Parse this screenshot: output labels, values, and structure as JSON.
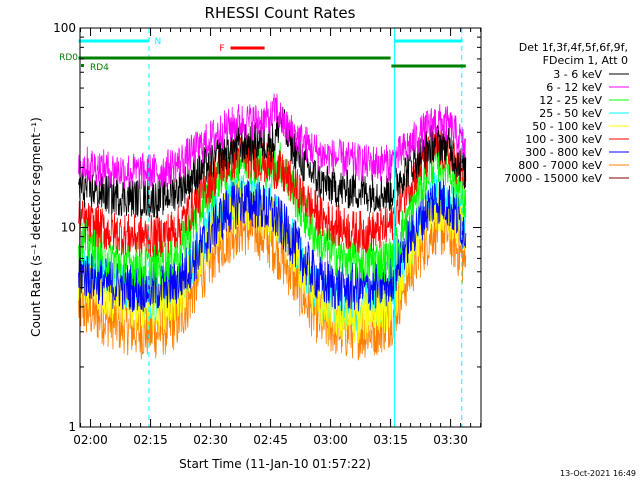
{
  "chart_data": {
    "type": "line",
    "title": "RHESSI Count Rates",
    "xlabel": "Start Time (11-Jan-10 01:57:22)",
    "ylabel": "Count Rate (s⁻¹ detector segment⁻¹)",
    "yscale": "log",
    "xlim": [
      117,
      1897
    ],
    "ylim": [
      1,
      100
    ],
    "x_unit": "minutes after 00:00, 11-Jan-10",
    "x_ticks": [
      {
        "x": 120,
        "label": "02:00"
      },
      {
        "x": 135,
        "label": "02:15"
      },
      {
        "x": 150,
        "label": "02:30"
      },
      {
        "x": 165,
        "label": "02:45"
      },
      {
        "x": 180,
        "label": "03:00"
      },
      {
        "x": 195,
        "label": "03:15"
      },
      {
        "x": 210,
        "label": "03:30"
      }
    ],
    "y_ticks": [
      {
        "y": 1,
        "label": "1"
      },
      {
        "y": 10,
        "label": "10"
      },
      {
        "y": 100,
        "label": "100"
      }
    ],
    "legend_header": [
      "Det 1f,3f,4f,5f,6f,9f,",
      "FDecim 1, Att 0"
    ],
    "legend_placement": "right",
    "series": [
      {
        "name": "3 - 6 keV",
        "color": "#000000",
        "x": [
          117,
          125,
          132,
          137,
          142,
          147,
          152,
          157,
          162,
          166,
          167.5,
          169,
          173,
          178,
          183,
          186,
          188,
          191,
          194,
          195.2,
          196,
          199,
          203,
          206,
          209,
          211.5,
          213.8
        ],
        "values": [
          16,
          14.5,
          14,
          14,
          15.5,
          19,
          23,
          26,
          27,
          27,
          36,
          29,
          21,
          16.5,
          15.5,
          15.5,
          15,
          15,
          15,
          15,
          16.5,
          19.5,
          24,
          27,
          26,
          22,
          19
        ]
      },
      {
        "name": "6 - 12 keV",
        "color": "#ff00ff",
        "x": [
          117,
          125,
          132,
          137,
          142,
          147,
          152,
          157,
          162,
          165,
          166.5,
          168,
          173,
          178,
          183,
          186,
          188,
          191,
          194,
          195.2,
          196,
          199,
          203,
          206,
          209,
          211.5,
          213.8
        ],
        "values": [
          21,
          19.5,
          19,
          19,
          21,
          25,
          30,
          34,
          34,
          35,
          40,
          33,
          27,
          23,
          22,
          21.5,
          21,
          21,
          21,
          21,
          22,
          25,
          30,
          34,
          33,
          29,
          25
        ]
      },
      {
        "name": "12 - 25 keV",
        "color": "#00ff00",
        "x": [
          117,
          125,
          132,
          137,
          142,
          147,
          152,
          157,
          162,
          166,
          167.5,
          169,
          173,
          178,
          183,
          186,
          188,
          191,
          194,
          195.2,
          196,
          199,
          203,
          206,
          209,
          211.5,
          213.8
        ],
        "values": [
          9,
          7,
          6.5,
          6.5,
          7.5,
          12,
          18,
          22,
          21,
          20,
          21,
          18,
          12,
          8,
          7,
          7,
          6.8,
          6.8,
          6.9,
          7,
          7.5,
          11,
          17,
          22,
          21,
          17,
          13
        ]
      },
      {
        "name": "25 - 50 keV",
        "color": "#00ffff",
        "x": [
          117,
          125,
          132,
          137,
          142,
          147,
          152,
          157,
          162,
          166,
          170,
          174,
          178,
          183,
          186,
          188,
          191,
          194,
          195.2,
          196,
          199,
          203,
          206,
          209,
          211.5,
          213.8
        ],
        "values": [
          6.5,
          5.5,
          4.5,
          4.5,
          5,
          8,
          12,
          15,
          14,
          12,
          9,
          6,
          4.5,
          4,
          4,
          4,
          4.2,
          4.5,
          4.8,
          5.2,
          7.5,
          11,
          15,
          14,
          12,
          10
        ]
      },
      {
        "name": "50 - 100 keV",
        "color": "#ffff00",
        "x": [
          117,
          125,
          132,
          137,
          142,
          147,
          152,
          157,
          162,
          166,
          170,
          174,
          178,
          183,
          186,
          188,
          191,
          194,
          195.2,
          196,
          199,
          203,
          206,
          209,
          211.5,
          213.8
        ],
        "values": [
          5.5,
          4.5,
          4,
          4,
          4.5,
          7,
          10.5,
          13,
          12,
          10.5,
          8,
          5.5,
          4,
          3.5,
          3.5,
          3.5,
          3.8,
          4,
          4.3,
          4.6,
          6.5,
          10,
          13,
          12.5,
          10.5,
          8.5
        ]
      },
      {
        "name": "100 - 300 keV",
        "color": "#ff0000",
        "x": [
          117,
          125,
          132,
          137,
          142,
          147,
          152,
          157,
          162,
          166,
          170,
          174,
          178,
          183,
          186,
          188,
          191,
          194,
          195.2,
          196,
          199,
          203,
          206,
          209,
          211.5,
          213.8
        ],
        "values": [
          11,
          9.5,
          9,
          9,
          10,
          14,
          19.5,
          23,
          22,
          20,
          17,
          13.5,
          11,
          10,
          9.5,
          9.5,
          9.5,
          10,
          10.5,
          11.5,
          16,
          21,
          25,
          24,
          21,
          18
        ]
      },
      {
        "name": "300 - 800 keV",
        "color": "#0000ff",
        "x": [
          117,
          125,
          132,
          137,
          142,
          147,
          152,
          157,
          162,
          166,
          170,
          174,
          178,
          183,
          186,
          188,
          191,
          194,
          195.2,
          196,
          199,
          203,
          206,
          209,
          211.5,
          213.8
        ],
        "values": [
          6,
          5.2,
          5,
          5,
          5.4,
          7.5,
          11,
          13.5,
          13,
          11.5,
          9,
          6.5,
          5.3,
          5,
          5,
          5,
          5.1,
          5.2,
          5.5,
          6,
          8.5,
          11.5,
          14,
          13.5,
          11.5,
          9.5
        ]
      },
      {
        "name": "800 - 7000 keV",
        "color": "#ff8000",
        "x": [
          117,
          125,
          132,
          137,
          142,
          147,
          152,
          157,
          162,
          166,
          170,
          174,
          178,
          183,
          186,
          188,
          191,
          194,
          195.2,
          196,
          199,
          203,
          206,
          209,
          211.5,
          213.8
        ],
        "values": [
          4,
          3.4,
          3,
          3,
          3.4,
          5.5,
          8,
          10,
          9.5,
          8,
          6,
          4.2,
          3.3,
          3,
          3,
          3,
          3.1,
          3.3,
          3.5,
          3.8,
          5.5,
          8,
          10,
          9.5,
          8,
          6.5
        ]
      },
      {
        "name": "7000 - 15000 keV",
        "color": "#800000",
        "x": [],
        "values": []
      }
    ],
    "flag_bars": [
      {
        "label": "N",
        "color": "#00ffff",
        "segments": [
          [
            117,
            134.5
          ],
          [
            196,
            213
          ]
        ]
      },
      {
        "label": "F",
        "color": "#ff0000",
        "segments": [
          [
            155,
            163.5
          ]
        ]
      },
      {
        "label": "RD0",
        "color": "#008000",
        "segments": [
          [
            117,
            195
          ]
        ]
      },
      {
        "label": "RD4",
        "color": "#008000",
        "segments": [
          [
            195.2,
            213.8
          ]
        ]
      }
    ],
    "interval_markers": [
      {
        "x": 134.6,
        "style": "dashed",
        "color": "#00ffff"
      },
      {
        "x": 196,
        "style": "solid",
        "color": "#00ffff"
      },
      {
        "x": 212.8,
        "style": "dashed",
        "color": "#00ffff"
      }
    ],
    "grid": false
  },
  "footer": {
    "timestamp": "13-Oct-2021 16:49"
  }
}
